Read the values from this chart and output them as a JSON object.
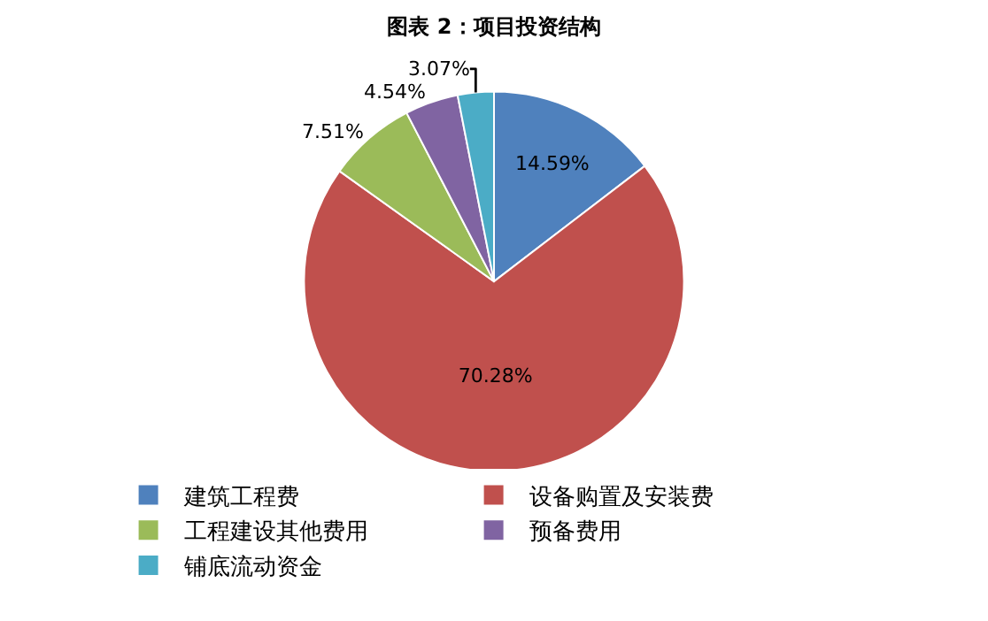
{
  "chart_data": {
    "type": "pie",
    "title": "图表 2：项目投资结构",
    "categories": [
      "建筑工程费",
      "设备购置及安装费",
      "工程建设其他费用",
      "预备费用",
      "铺底流动资金"
    ],
    "values": [
      14.59,
      70.28,
      7.51,
      4.54,
      3.07
    ],
    "value_labels": [
      "14.59%",
      "70.28%",
      "7.51%",
      "4.54%",
      "3.07%"
    ],
    "colors": [
      "#4f81bd",
      "#c0504d",
      "#9bbb59",
      "#8064a2",
      "#4bacc6"
    ],
    "legend": "bottom"
  }
}
